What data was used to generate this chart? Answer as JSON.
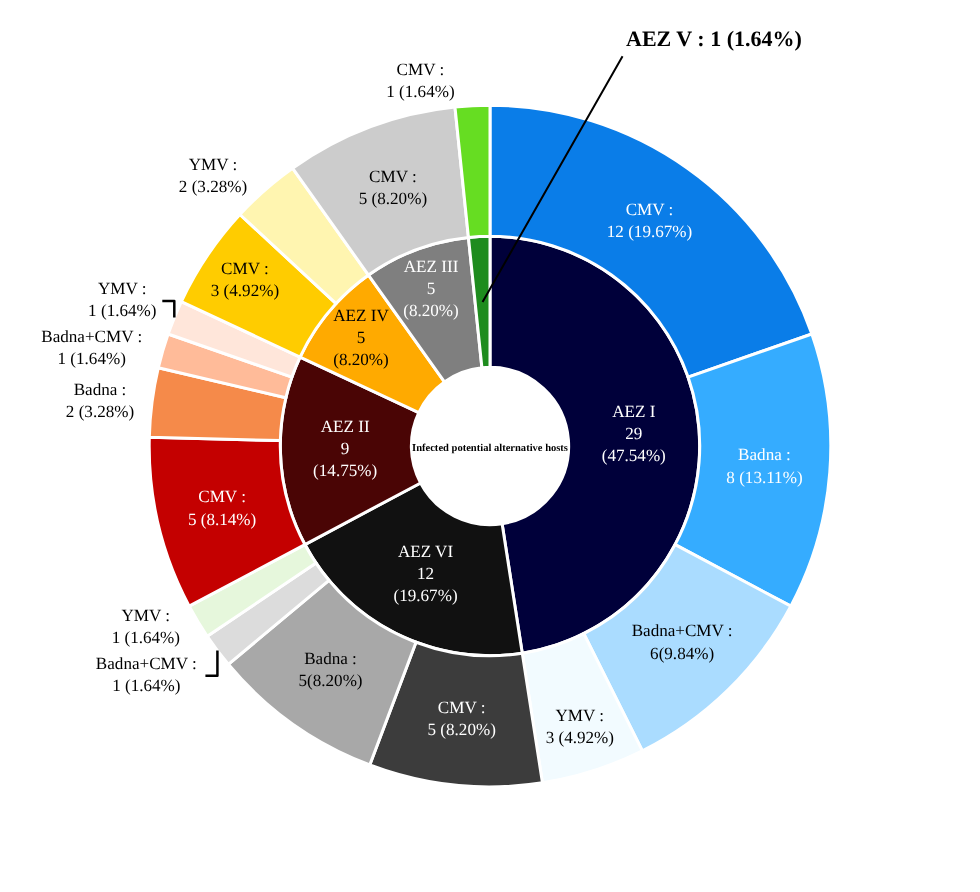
{
  "chart_data": [
    {
      "type": "donut",
      "title": "Infected potential alternative hosts",
      "categories": [
        "AEZ I",
        "AEZ VI",
        "AEZ II",
        "AEZ IV",
        "AEZ III",
        "AEZ V"
      ],
      "values": [
        29,
        12,
        9,
        5,
        5,
        1
      ],
      "value_labels": [
        "29\n(47.54%)",
        "12\n(19.67%)",
        "9\n(14.75%)",
        "5\n(8.20%)",
        "5\n(8.20%)",
        ": 1 (1.64%)"
      ],
      "colors": [
        "#00003a",
        "#111111",
        "#4a0505",
        "#ffaa00",
        "#7f7f7f",
        "#1e8c1e"
      ]
    },
    {
      "type": "donut",
      "categories": [
        "CMV",
        "Badna",
        "Badna+CMV",
        "YMV",
        "CMV",
        "Badna",
        "Badna+CMV",
        "YMV",
        "CMV",
        "Badna",
        "Badna+CMV",
        "YMV",
        "CMV",
        "YMV",
        "CMV",
        "CMV"
      ],
      "values": [
        12,
        8,
        6,
        3,
        5,
        5,
        1,
        1,
        5,
        2,
        1,
        1,
        3,
        2,
        5,
        1
      ],
      "value_labels": [
        ":\n12 (19.67%)",
        ":\n8 (13.11%)",
        ":\n6(9.84%)",
        ":\n3 (4.92%)",
        ":\n5 (8.20%)",
        ":\n5(8.20%)",
        ":\n1 (1.64%)",
        ":\n1 (1.64%)",
        ":\n5 (8.14%)",
        ":\n2 (3.28%)",
        ":\n1 (1.64%)",
        ":\n1 (1.64%)",
        ":\n3 (4.92%)",
        ":\n2 (3.28%)",
        ":\n5 (8.20%)",
        ":\n1 (1.64%)"
      ],
      "colors": [
        "#0a7de8",
        "#35acff",
        "#aadcff",
        "#f2fbff",
        "#3c3c3c",
        "#a8a8a8",
        "#dcdcdc",
        "#e6f7dc",
        "#c40000",
        "#f58a4a",
        "#ffbb99",
        "#ffe6da",
        "#ffcc00",
        "#fff5b0",
        "#cccccc",
        "#66dd22"
      ]
    }
  ]
}
